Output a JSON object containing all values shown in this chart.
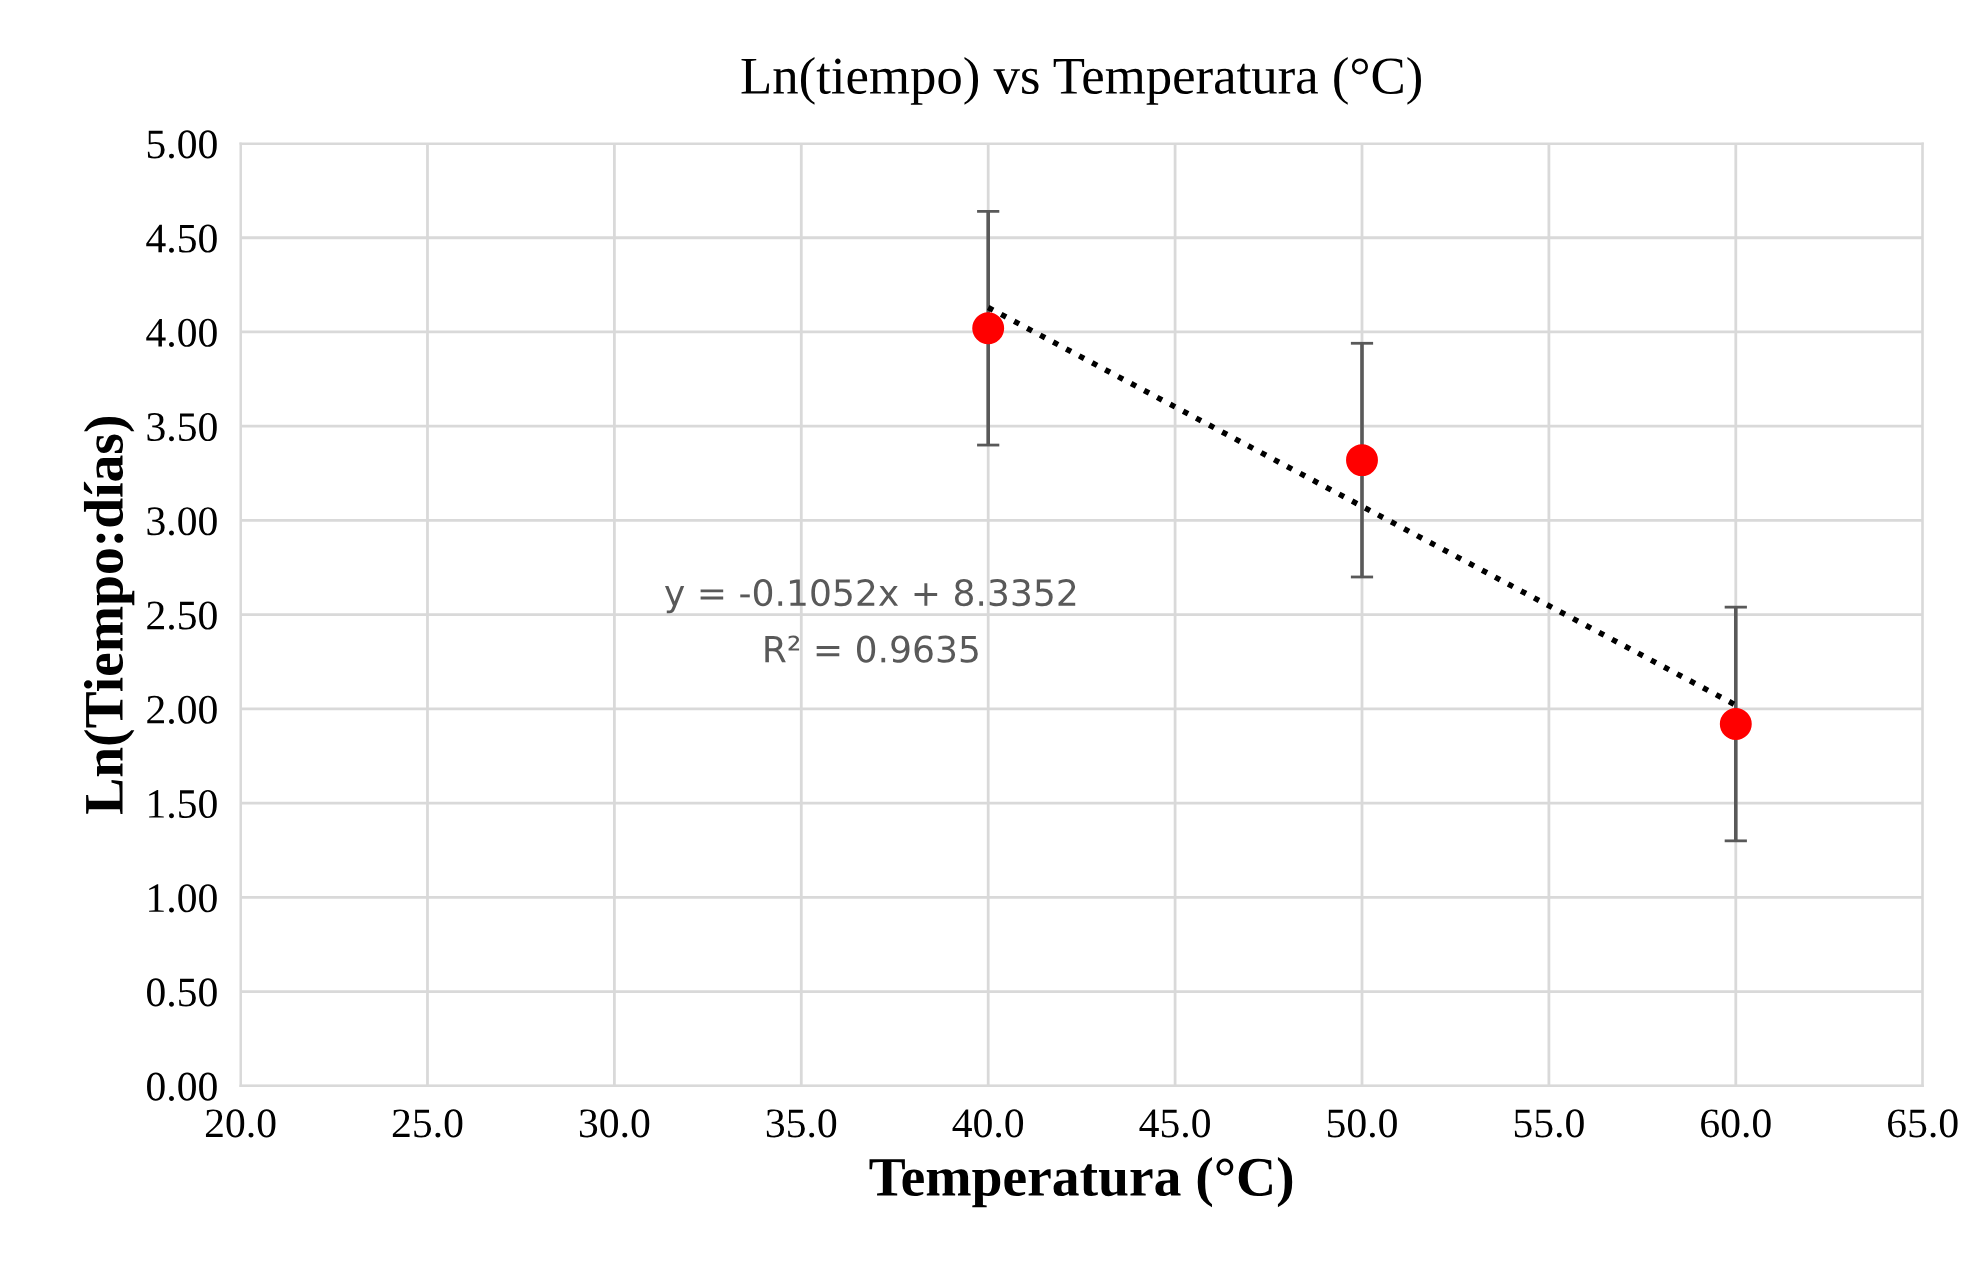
{
  "chart_data": {
    "type": "scatter",
    "title": "Ln(tiempo) vs Temperatura (°C)",
    "xlabel": "Temperatura (°C)",
    "ylabel": "Ln(Tiempo:días)",
    "annotations": [
      "y = -0.1052x + 8.3352",
      "R² = 0.9635"
    ],
    "series": [
      {
        "color": "#ff0000",
        "x": [
          40,
          50,
          60
        ],
        "values": [
          4.02,
          3.32,
          1.92
        ],
        "errors": [
          0.62,
          0.62,
          0.62
        ],
        "marker": "circle"
      },
      {
        "type": "line",
        "color": "#000000",
        "x": [
          40,
          60
        ],
        "values": [
          4.13,
          2.02
        ],
        "line_style": "dotted",
        "marker": "none"
      }
    ],
    "xlim": [
      20,
      65
    ],
    "xticks": [
      {
        "value": 20,
        "label": "20.0"
      },
      {
        "value": 25,
        "label": "25.0"
      },
      {
        "value": 30,
        "label": "30.0"
      },
      {
        "value": 35,
        "label": "35.0"
      },
      {
        "value": 40,
        "label": "40.0"
      },
      {
        "value": 45,
        "label": "45.0"
      },
      {
        "value": 50,
        "label": "50.0"
      },
      {
        "value": 55,
        "label": "55.0"
      },
      {
        "value": 60,
        "label": "60.0"
      },
      {
        "value": 65,
        "label": "65.0"
      }
    ],
    "ylim": [
      0,
      5
    ],
    "yticks": [
      {
        "value": 0,
        "label": "0.00"
      },
      {
        "value": 0.5,
        "label": "0.50"
      },
      {
        "value": 1,
        "label": "1.00"
      },
      {
        "value": 1.5,
        "label": "1.50"
      },
      {
        "value": 2,
        "label": "2.00"
      },
      {
        "value": 2.5,
        "label": "2.50"
      },
      {
        "value": 3,
        "label": "3.00"
      },
      {
        "value": 3.5,
        "label": "3.50"
      },
      {
        "value": 4,
        "label": "4.00"
      },
      {
        "value": 4.5,
        "label": "4.50"
      },
      {
        "value": 5,
        "label": "5.00"
      }
    ],
    "grid": true,
    "legend": false
  }
}
